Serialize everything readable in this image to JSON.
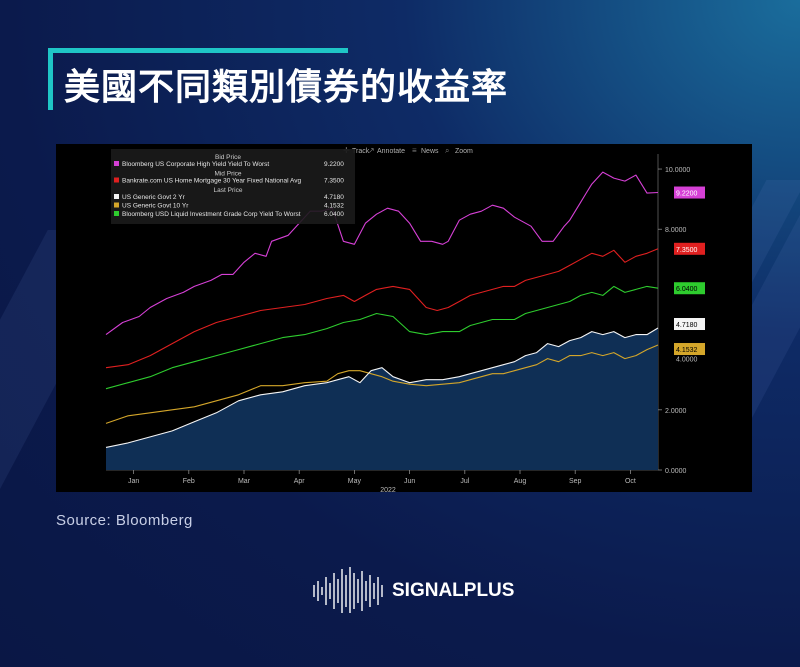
{
  "header": {
    "title": "美國不同類別債券的收益率"
  },
  "toolbar": {
    "track": "Track",
    "annotate": "Annotate",
    "news": "News",
    "zoom": "Zoom"
  },
  "footer": {
    "source": "Source:  Bloomberg"
  },
  "logo": {
    "text": "SIGNALPLUS"
  },
  "chart_data": {
    "type": "line",
    "x_ticks": [
      "Jan",
      "Feb",
      "Mar",
      "Apr",
      "May",
      "Jun",
      "Jul",
      "Aug",
      "Sep",
      "Oct"
    ],
    "xlabel": "2022",
    "ylim": [
      0,
      10.5
    ],
    "y_ticks": [
      {
        "value": 10,
        "label": "10.0000"
      },
      {
        "value": 8,
        "label": "8.0000"
      },
      {
        "value": 2,
        "label": "2.0000"
      },
      {
        "value": 0,
        "label": "0.0000"
      }
    ],
    "axis_overlap_label": "4.0000",
    "legend_groups": [
      {
        "header": "Bid Price",
        "series": [
          0
        ]
      },
      {
        "header": "Mid Price",
        "series": [
          1
        ]
      },
      {
        "header": "Last Price",
        "series": [
          2,
          3,
          4
        ]
      }
    ],
    "series": [
      {
        "name": "Bloomberg US Corporate High Yield Yield To Worst",
        "last": "9.2200",
        "color": "#d640d6",
        "badge_text": "#ffffff",
        "x": [
          0,
          3,
          6,
          8,
          11,
          14,
          16,
          19,
          21,
          23,
          25,
          27,
          29,
          30,
          33,
          35,
          37,
          39,
          41,
          43,
          45,
          47,
          49,
          51,
          53,
          55,
          57,
          59,
          61,
          62,
          64,
          66,
          68,
          70,
          72,
          74,
          75,
          77,
          79,
          81,
          83,
          84,
          85,
          86,
          87,
          88,
          90,
          92,
          94,
          96,
          98,
          100
        ],
        "values": [
          4.5,
          4.9,
          5.1,
          5.4,
          5.7,
          5.9,
          6.1,
          6.3,
          6.5,
          6.5,
          6.9,
          7.2,
          7.1,
          7.6,
          7.8,
          8.2,
          8.6,
          8.6,
          8.7,
          7.6,
          7.5,
          8.2,
          8.5,
          8.7,
          8.6,
          8.2,
          7.6,
          7.6,
          7.5,
          7.6,
          8.3,
          8.5,
          8.6,
          8.8,
          8.7,
          8.4,
          8.3,
          8.1,
          7.6,
          7.6,
          8.1,
          8.3,
          8.6,
          8.9,
          9.2,
          9.5,
          9.9,
          9.7,
          9.6,
          9.8,
          9.2,
          9.22
        ]
      },
      {
        "name": "Bankrate.com US Home Mortgage 30 Year Fixed National Avg",
        "last": "7.3500",
        "color": "#e02020",
        "badge_text": "#ffffff",
        "x": [
          0,
          4,
          8,
          12,
          16,
          20,
          24,
          28,
          32,
          36,
          40,
          43,
          45,
          47,
          49,
          52,
          55,
          58,
          60,
          62,
          64,
          66,
          68,
          70,
          72,
          74,
          76,
          78,
          80,
          82,
          84,
          86,
          88,
          90,
          92,
          94,
          96,
          98,
          100
        ],
        "values": [
          3.4,
          3.5,
          3.8,
          4.2,
          4.6,
          4.9,
          5.1,
          5.3,
          5.4,
          5.5,
          5.7,
          5.8,
          5.6,
          5.8,
          6.0,
          6.1,
          6.0,
          5.4,
          5.3,
          5.4,
          5.6,
          5.8,
          5.9,
          6.0,
          6.1,
          6.1,
          6.3,
          6.4,
          6.5,
          6.6,
          6.8,
          7.0,
          7.2,
          7.1,
          7.3,
          6.9,
          7.1,
          7.2,
          7.35
        ]
      },
      {
        "name": "US Generic Govt 2 Yr",
        "last": "4.7180",
        "color": "#f5f5f5",
        "badge_text": "#000000",
        "x": [
          0,
          4,
          8,
          12,
          16,
          20,
          24,
          28,
          32,
          36,
          40,
          42,
          44,
          46,
          48,
          50,
          52,
          55,
          58,
          61,
          64,
          66,
          68,
          70,
          72,
          74,
          76,
          78,
          80,
          82,
          84,
          86,
          88,
          90,
          92,
          94,
          96,
          98,
          100
        ],
        "values": [
          0.75,
          0.9,
          1.1,
          1.3,
          1.6,
          1.9,
          2.3,
          2.5,
          2.6,
          2.8,
          2.9,
          3.0,
          3.1,
          2.9,
          3.3,
          3.4,
          3.1,
          2.9,
          3.0,
          3.0,
          3.1,
          3.2,
          3.3,
          3.4,
          3.5,
          3.6,
          3.8,
          3.9,
          4.2,
          4.1,
          4.3,
          4.4,
          4.6,
          4.5,
          4.6,
          4.4,
          4.5,
          4.5,
          4.718
        ]
      },
      {
        "name": "US Generic Govt 10 Yr",
        "last": "4.1532",
        "color": "#d4a62a",
        "badge_text": "#000000",
        "x": [
          0,
          4,
          8,
          12,
          16,
          20,
          24,
          28,
          32,
          36,
          40,
          42,
          44,
          46,
          48,
          50,
          52,
          55,
          58,
          61,
          64,
          66,
          68,
          70,
          72,
          74,
          76,
          78,
          80,
          82,
          84,
          86,
          88,
          90,
          92,
          94,
          96,
          98,
          100
        ],
        "values": [
          1.55,
          1.8,
          1.9,
          2.0,
          2.1,
          2.3,
          2.5,
          2.8,
          2.8,
          2.9,
          2.95,
          3.2,
          3.3,
          3.3,
          3.2,
          3.1,
          2.95,
          2.85,
          2.8,
          2.85,
          2.9,
          3.0,
          3.1,
          3.2,
          3.2,
          3.3,
          3.4,
          3.5,
          3.7,
          3.6,
          3.8,
          3.8,
          3.9,
          3.8,
          3.9,
          3.7,
          3.8,
          4.0,
          4.153
        ]
      },
      {
        "name": "Bloomberg USD Liquid Investment Grade Corp Yield To Worst",
        "last": "6.0400",
        "color": "#2ecc2e",
        "badge_text": "#000000",
        "x": [
          0,
          4,
          8,
          12,
          16,
          20,
          24,
          28,
          32,
          36,
          40,
          43,
          46,
          49,
          52,
          55,
          58,
          61,
          64,
          66,
          68,
          70,
          72,
          74,
          76,
          78,
          80,
          82,
          84,
          86,
          88,
          90,
          92,
          94,
          96,
          98,
          100
        ],
        "values": [
          2.7,
          2.9,
          3.1,
          3.4,
          3.6,
          3.8,
          4.0,
          4.2,
          4.4,
          4.5,
          4.7,
          4.9,
          5.0,
          5.2,
          5.1,
          4.6,
          4.5,
          4.6,
          4.6,
          4.8,
          4.9,
          5.0,
          5.0,
          5.0,
          5.2,
          5.3,
          5.4,
          5.5,
          5.6,
          5.8,
          5.9,
          5.8,
          6.1,
          5.9,
          6.0,
          6.1,
          6.04
        ]
      }
    ]
  }
}
